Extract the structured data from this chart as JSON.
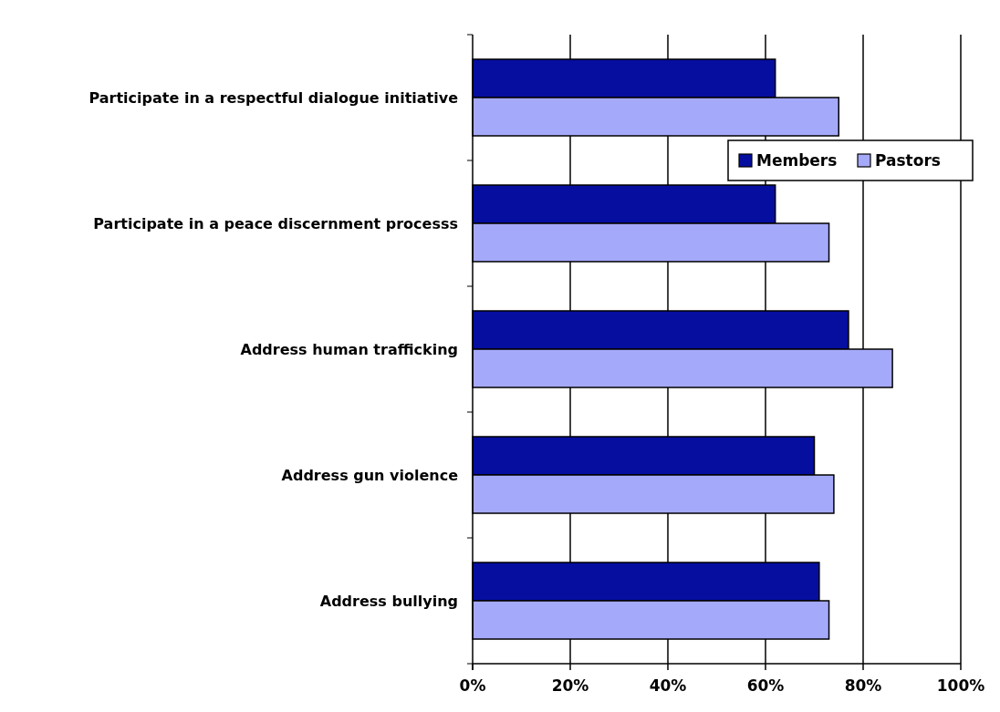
{
  "chart_data": {
    "type": "bar",
    "orientation": "horizontal",
    "categories": [
      "Participate in a respectful dialogue initiative",
      "Participate in a peace discernment processs",
      "Address human trafficking",
      "Address gun violence",
      "Address bullying"
    ],
    "series": [
      {
        "name": "Members",
        "color": "#060e9f",
        "values": [
          62,
          62,
          77,
          70,
          71
        ]
      },
      {
        "name": "Pastors",
        "color": "#a5a9fa",
        "values": [
          75,
          73,
          86,
          74,
          73
        ]
      }
    ],
    "xlim": [
      0,
      100
    ],
    "xticks": [
      {
        "value": 0,
        "label": "0%"
      },
      {
        "value": 20,
        "label": "20%"
      },
      {
        "value": 40,
        "label": "40%"
      },
      {
        "value": 60,
        "label": "60%"
      },
      {
        "value": 80,
        "label": "80%"
      },
      {
        "value": 100,
        "label": "100%"
      }
    ],
    "grid": "x",
    "legend": "right"
  }
}
